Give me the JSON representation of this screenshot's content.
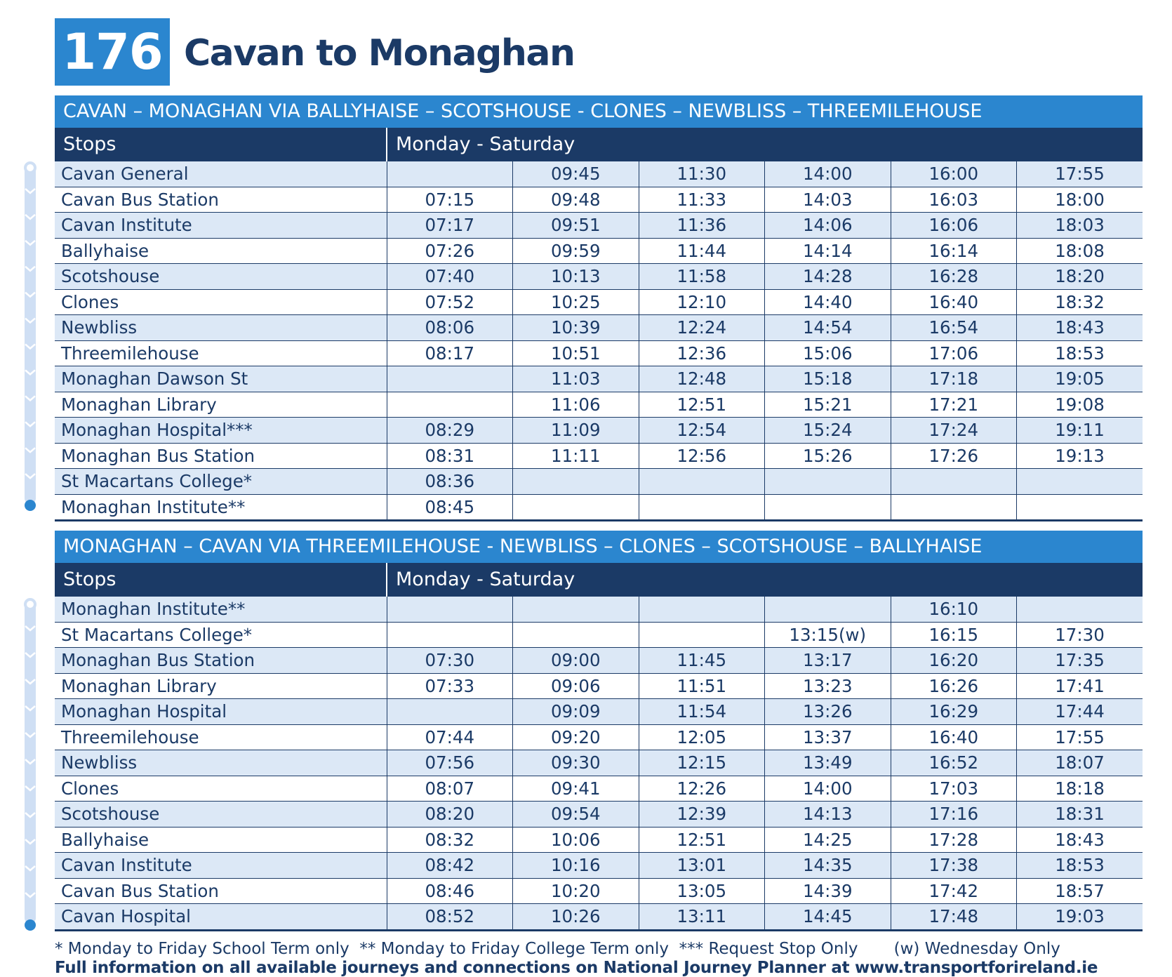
{
  "header": {
    "route_number": "176",
    "route_title": "Cavan to Monaghan"
  },
  "outbound": {
    "route_description": "CAVAN – MONAGHAN VIA BALLYHAISE – SCOTSHOUSE - CLONES – NEWBLISS – THREEMILEHOUSE",
    "stops_header": "Stops",
    "days_header": "Monday - Saturday",
    "rows": [
      [
        "Cavan General",
        "",
        "09:45",
        "11:30",
        "14:00",
        "16:00",
        "17:55"
      ],
      [
        "Cavan Bus Station",
        "07:15",
        "09:48",
        "11:33",
        "14:03",
        "16:03",
        "18:00"
      ],
      [
        "Cavan Institute",
        "07:17",
        "09:51",
        "11:36",
        "14:06",
        "16:06",
        "18:03"
      ],
      [
        "Ballyhaise",
        "07:26",
        "09:59",
        "11:44",
        "14:14",
        "16:14",
        "18:08"
      ],
      [
        "Scotshouse",
        "07:40",
        "10:13",
        "11:58",
        "14:28",
        "16:28",
        "18:20"
      ],
      [
        "Clones",
        "07:52",
        "10:25",
        "12:10",
        "14:40",
        "16:40",
        "18:32"
      ],
      [
        "Newbliss",
        "08:06",
        "10:39",
        "12:24",
        "14:54",
        "16:54",
        "18:43"
      ],
      [
        "Threemilehouse",
        "08:17",
        "10:51",
        "12:36",
        "15:06",
        "17:06",
        "18:53"
      ],
      [
        "Monaghan Dawson St",
        "",
        "11:03",
        "12:48",
        "15:18",
        "17:18",
        "19:05"
      ],
      [
        "Monaghan Library",
        "",
        "11:06",
        "12:51",
        "15:21",
        "17:21",
        "19:08"
      ],
      [
        "Monaghan Hospital***",
        "08:29",
        "11:09",
        "12:54",
        "15:24",
        "17:24",
        "19:11"
      ],
      [
        "Monaghan Bus Station",
        "08:31",
        "11:11",
        "12:56",
        "15:26",
        "17:26",
        "19:13"
      ],
      [
        "St Macartans College*",
        "08:36",
        "",
        "",
        "",
        "",
        ""
      ],
      [
        "Monaghan Institute**",
        "08:45",
        "",
        "",
        "",
        "",
        ""
      ]
    ]
  },
  "inbound": {
    "route_description": "MONAGHAN – CAVAN VIA THREEMILEHOUSE - NEWBLISS  – CLONES – SCOTSHOUSE – BALLYHAISE",
    "stops_header": "Stops",
    "days_header": "Monday - Saturday",
    "rows": [
      [
        "Monaghan Institute**",
        "",
        "",
        "",
        "",
        "16:10",
        ""
      ],
      [
        "St Macartans College*",
        "",
        "",
        "",
        "13:15(w)",
        "16:15",
        "17:30"
      ],
      [
        "Monaghan Bus Station",
        "07:30",
        "09:00",
        "11:45",
        "13:17",
        "16:20",
        "17:35"
      ],
      [
        "Monaghan Library",
        "07:33",
        "09:06",
        "11:51",
        "13:23",
        "16:26",
        "17:41"
      ],
      [
        "Monaghan Hospital",
        "",
        "09:09",
        "11:54",
        "13:26",
        "16:29",
        "17:44"
      ],
      [
        "Threemilehouse",
        "07:44",
        "09:20",
        "12:05",
        "13:37",
        "16:40",
        "17:55"
      ],
      [
        "Newbliss",
        "07:56",
        "09:30",
        "12:15",
        "13:49",
        "16:52",
        "18:07"
      ],
      [
        "Clones",
        "08:07",
        "09:41",
        "12:26",
        "14:00",
        "17:03",
        "18:18"
      ],
      [
        "Scotshouse",
        "08:20",
        "09:54",
        "12:39",
        "14:13",
        "17:16",
        "18:31"
      ],
      [
        "Ballyhaise",
        "08:32",
        "10:06",
        "12:51",
        "14:25",
        "17:28",
        "18:43"
      ],
      [
        "Cavan Institute",
        "08:42",
        "10:16",
        "13:01",
        "14:35",
        "17:38",
        "18:53"
      ],
      [
        "Cavan Bus Station",
        "08:46",
        "10:20",
        "13:05",
        "14:39",
        "17:42",
        "18:57"
      ],
      [
        "Cavan Hospital",
        "08:52",
        "10:26",
        "13:11",
        "14:45",
        "17:48",
        "19:03"
      ]
    ]
  },
  "footer": {
    "footnotes": "* Monday to Friday School Term only  ** Monday to Friday College Term only  *** Request Stop Only       (w) Wednesday Only",
    "info": "Full information on all available journeys and connections on National Journey Planner at www.transportforireland.ie"
  },
  "colors": {
    "navy": "#1b3a66",
    "blue": "#2b86cf",
    "row_tint": "#dce8f6",
    "route_line": "#cfdff4",
    "route_dot": "#2b86cf"
  }
}
